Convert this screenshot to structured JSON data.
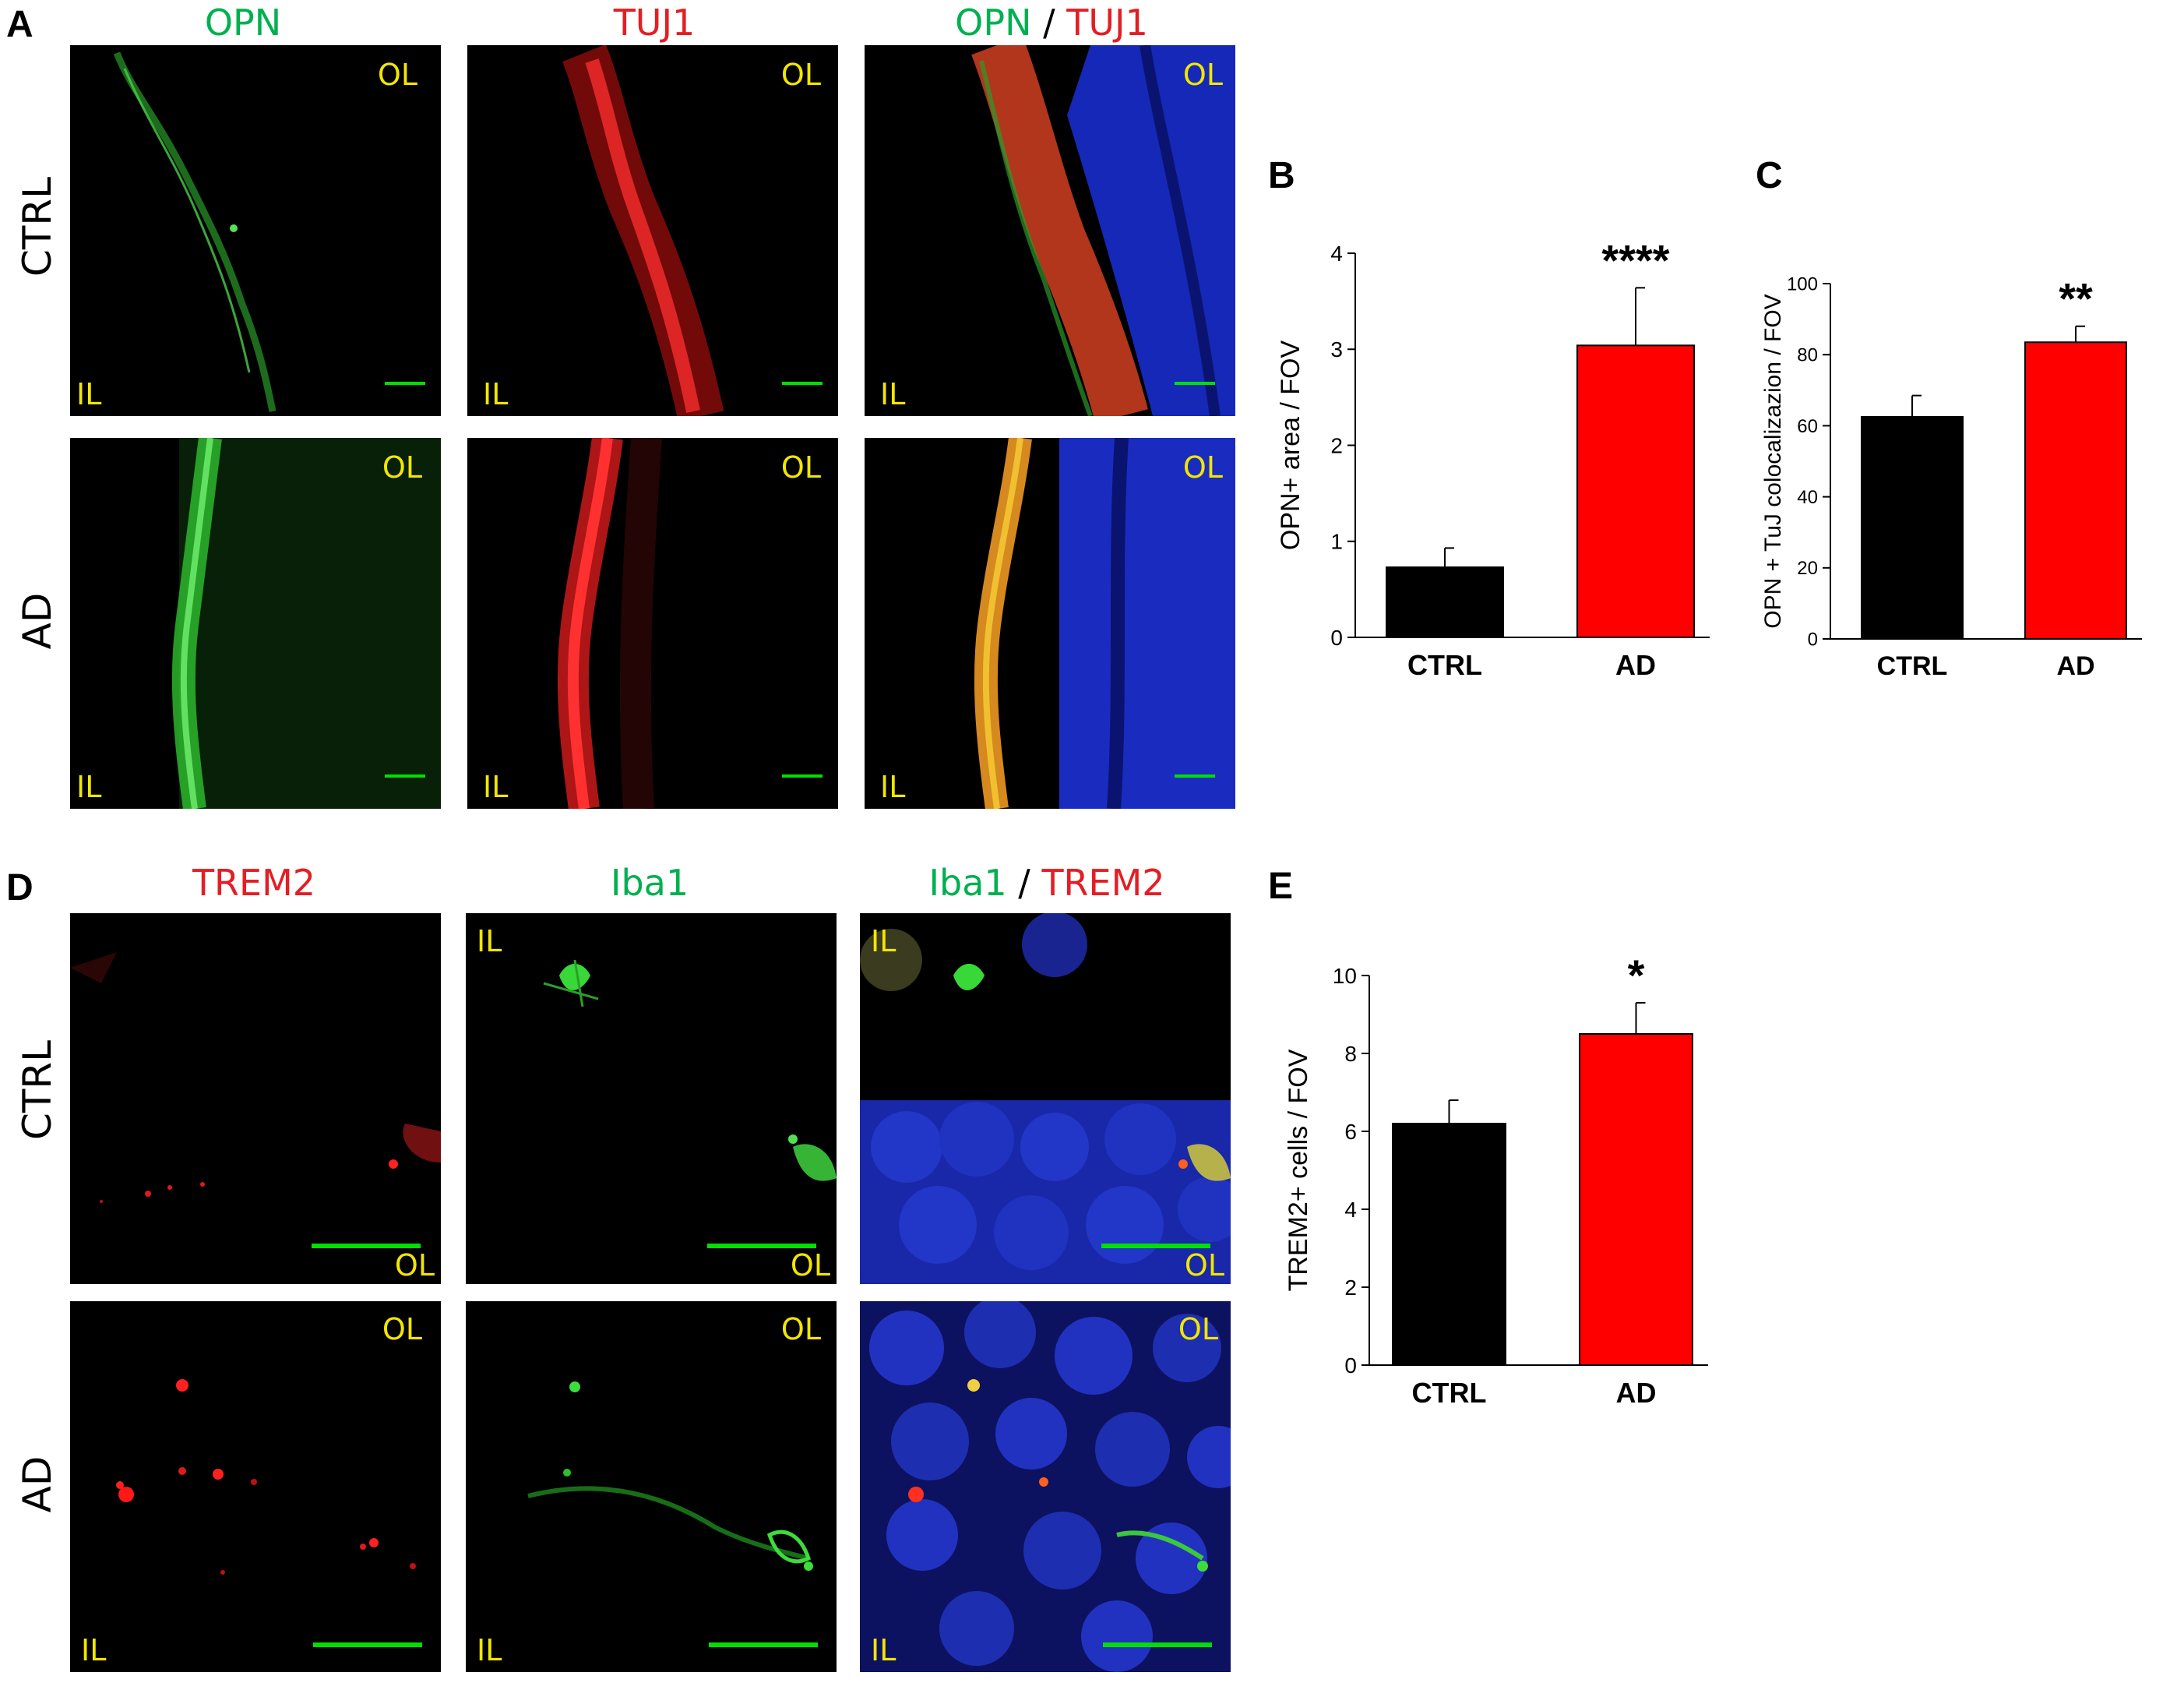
{
  "panels": {
    "A": {
      "letter": "A",
      "headers": [
        {
          "parts": [
            {
              "text": "OPN",
              "color": "#00b050"
            }
          ]
        },
        {
          "parts": [
            {
              "text": "TUJ1",
              "color": "#e31e24"
            }
          ]
        },
        {
          "parts": [
            {
              "text": "OPN",
              "color": "#00b050"
            },
            {
              "text": " / ",
              "color": "#000000"
            },
            {
              "text": "TUJ1",
              "color": "#e31e24"
            }
          ]
        }
      ],
      "rows": [
        "CTRL",
        "AD"
      ],
      "tags": {
        "outer": "OL",
        "inner": "IL"
      }
    },
    "D": {
      "letter": "D",
      "headers": [
        {
          "parts": [
            {
              "text": "TREM2",
              "color": "#e31e24"
            }
          ]
        },
        {
          "parts": [
            {
              "text": "Iba1",
              "color": "#00b050"
            }
          ]
        },
        {
          "parts": [
            {
              "text": "Iba1",
              "color": "#00b050"
            },
            {
              "text": " / ",
              "color": "#000000"
            },
            {
              "text": "TREM2",
              "color": "#e31e24"
            }
          ]
        }
      ],
      "rows": [
        "CTRL",
        "AD"
      ],
      "tags": {
        "outer": "OL",
        "inner": "IL"
      }
    },
    "B": {
      "letter": "B"
    },
    "C": {
      "letter": "C"
    },
    "E": {
      "letter": "E"
    }
  },
  "chart_data": [
    {
      "id": "B",
      "type": "bar",
      "categories": [
        "CTRL",
        "AD"
      ],
      "values": [
        0.73,
        3.04
      ],
      "errors": [
        0.2,
        0.6
      ],
      "colors": [
        "#000000",
        "#ff0000"
      ],
      "ylabel": "OPN+ area / FOV",
      "ylim": [
        0,
        4
      ],
      "yticks": [
        0,
        1,
        2,
        3,
        4
      ],
      "significance": [
        "",
        "****"
      ]
    },
    {
      "id": "C",
      "type": "bar",
      "categories": [
        "CTRL",
        "AD"
      ],
      "values": [
        62.5,
        83.5
      ],
      "errors": [
        6.0,
        4.5
      ],
      "colors": [
        "#000000",
        "#ff0000"
      ],
      "ylabel": "OPN + TuJ colocalizazion / FOV",
      "ylim": [
        0,
        100
      ],
      "yticks": [
        0,
        20,
        40,
        60,
        80,
        100
      ],
      "significance": [
        "",
        "**"
      ]
    },
    {
      "id": "E",
      "type": "bar",
      "categories": [
        "CTRL",
        "AD"
      ],
      "values": [
        6.2,
        8.5
      ],
      "errors": [
        0.6,
        0.8
      ],
      "colors": [
        "#000000",
        "#ff0000"
      ],
      "ylabel": "TREM2+ cells / FOV",
      "ylim": [
        0,
        10
      ],
      "yticks": [
        0,
        2,
        4,
        6,
        8,
        10
      ],
      "significance": [
        "",
        "*"
      ]
    }
  ]
}
